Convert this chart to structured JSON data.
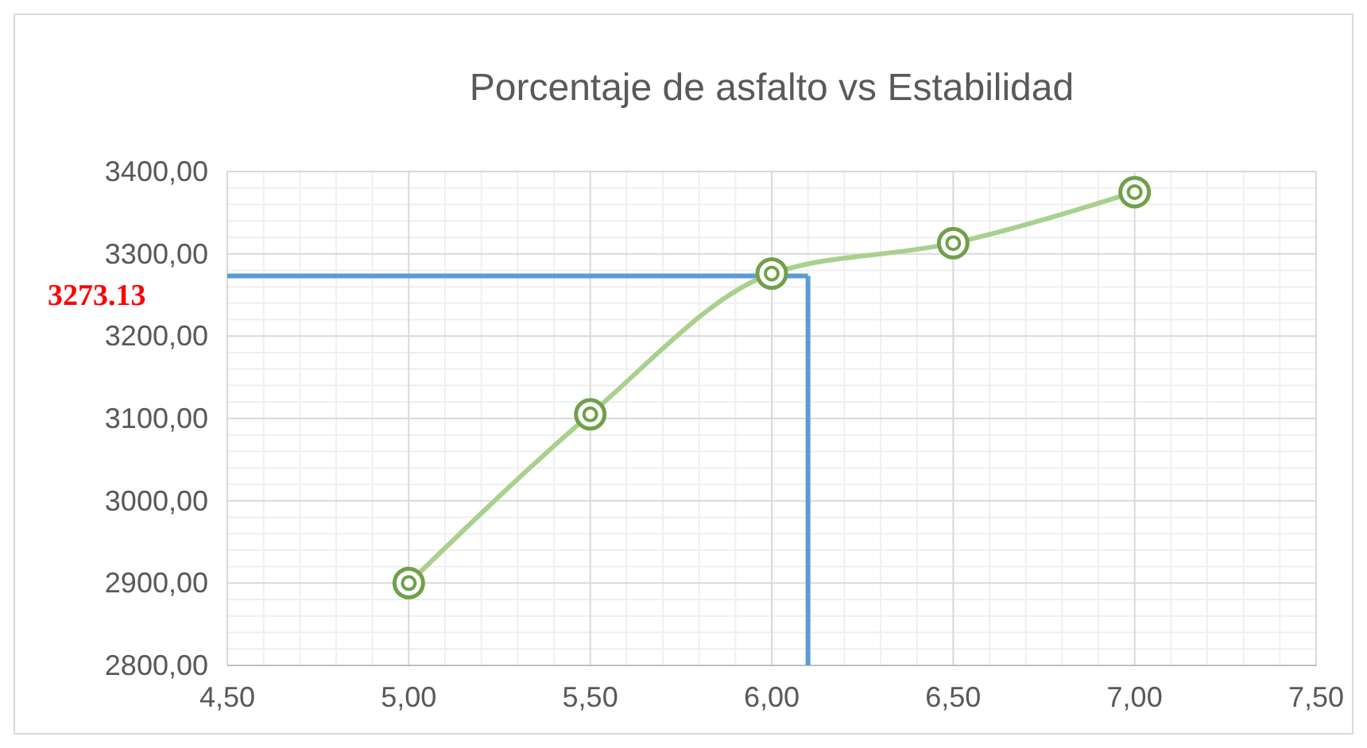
{
  "chart_data": {
    "type": "line",
    "title": "Porcentaje de asfalto vs Estabilidad",
    "x": [
      5.0,
      5.5,
      6.0,
      6.5,
      7.0
    ],
    "series": [
      {
        "color": "#70a04a",
        "values": [
          2900,
          3105,
          3276,
          3313,
          3375
        ]
      }
    ],
    "xlim": [
      4.5,
      7.5
    ],
    "xticks": [
      {
        "value": 4.5,
        "label": "4,50"
      },
      {
        "value": 5,
        "label": "5,00"
      },
      {
        "value": 5.5,
        "label": "5,50"
      },
      {
        "value": 6,
        "label": "6,00"
      },
      {
        "value": 6.5,
        "label": "6,50"
      },
      {
        "value": 7,
        "label": "7,00"
      },
      {
        "value": 7.5,
        "label": "7,50"
      }
    ],
    "ylim": [
      2800,
      3400
    ],
    "yticks": [
      {
        "value": 2800,
        "label": "2800,00"
      },
      {
        "value": 2900,
        "label": "2900,00"
      },
      {
        "value": 3000,
        "label": "3000,00"
      },
      {
        "value": 3100,
        "label": "3100,00"
      },
      {
        "value": 3200,
        "label": "3200,00"
      },
      {
        "value": 3300,
        "label": "3300,00"
      },
      {
        "value": 3400,
        "label": "3400,00"
      }
    ],
    "grid": true,
    "marker": "circle",
    "line_style": "solid",
    "ref_lines": [
      {
        "axis": "y",
        "value": 3273.13,
        "label": "3273.13",
        "color": "#5b9bd5"
      },
      {
        "axis": "x",
        "value": 6.1,
        "color": "#5b9bd5"
      }
    ]
  }
}
